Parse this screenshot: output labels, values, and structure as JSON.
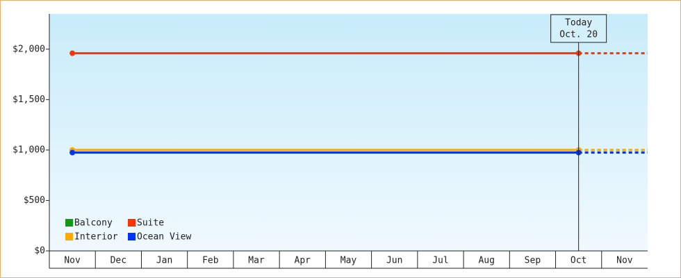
{
  "chart_data": {
    "type": "line",
    "categories": [
      "Nov",
      "Dec",
      "Jan",
      "Feb",
      "Mar",
      "Apr",
      "May",
      "Jun",
      "Jul",
      "Aug",
      "Sep",
      "Oct",
      "Nov"
    ],
    "series": [
      {
        "name": "Balcony",
        "color": "#119911",
        "values": [
          1000,
          1000,
          1000,
          1000,
          1000,
          1000,
          1000,
          1000,
          1000,
          1000,
          1000,
          1000,
          null
        ]
      },
      {
        "name": "Suite",
        "color": "#ff3300",
        "values": [
          1960,
          1960,
          1960,
          1960,
          1960,
          1960,
          1960,
          1960,
          1960,
          1960,
          1960,
          1960,
          null
        ]
      },
      {
        "name": "Interior",
        "color": "#ffaa00",
        "values": [
          1000,
          1000,
          1000,
          1000,
          1000,
          1000,
          1000,
          1000,
          1000,
          1000,
          1000,
          1000,
          null
        ]
      },
      {
        "name": "Ocean View",
        "color": "#0033ff",
        "values": [
          975,
          975,
          975,
          975,
          975,
          975,
          975,
          975,
          975,
          975,
          975,
          975,
          null
        ]
      }
    ],
    "ylim": [
      0,
      2350
    ],
    "yticks": [
      {
        "value": 0,
        "label": "$0"
      },
      {
        "value": 500,
        "label": "$500"
      },
      {
        "value": 1000,
        "label": "$1,000"
      },
      {
        "value": 1500,
        "label": "$1,500"
      },
      {
        "value": 2000,
        "label": "$2,000"
      }
    ],
    "today": {
      "label": "Today",
      "date": "Oct. 20",
      "category": 11
    },
    "legend": "lower left"
  }
}
